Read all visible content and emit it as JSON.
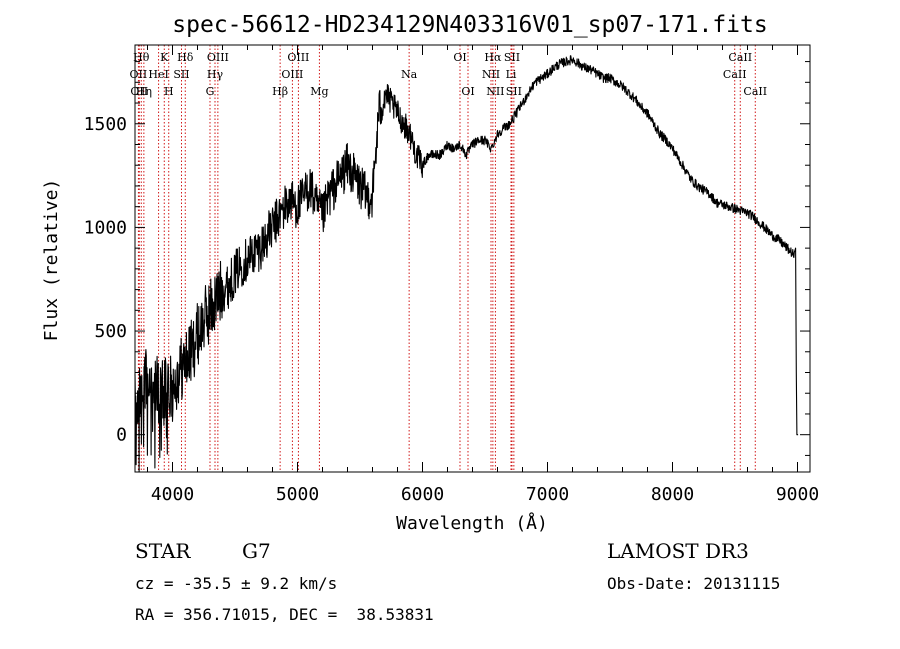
{
  "chart_data": {
    "type": "line",
    "title": "spec-56612-HD234129N403316V01_sp07-171.fits",
    "xlabel": "Wavelength (Å)",
    "ylabel": "Flux (relative)",
    "xlim": [
      3700,
      9100
    ],
    "ylim": [
      -180,
      1880
    ],
    "xticks": [
      4000,
      5000,
      6000,
      7000,
      8000,
      9000
    ],
    "yticks": [
      0,
      500,
      1000,
      1500
    ],
    "grid": false,
    "series": [
      {
        "name": "flux",
        "x": [
          3700,
          3750,
          3800,
          3850,
          3900,
          3950,
          4000,
          4050,
          4100,
          4150,
          4200,
          4250,
          4300,
          4350,
          4400,
          4450,
          4500,
          4550,
          4600,
          4650,
          4700,
          4750,
          4800,
          4850,
          4900,
          4950,
          5000,
          5050,
          5100,
          5150,
          5200,
          5250,
          5300,
          5350,
          5400,
          5450,
          5500,
          5550,
          5600,
          5650,
          5700,
          5750,
          5800,
          5850,
          5900,
          5950,
          6000,
          6050,
          6100,
          6150,
          6200,
          6250,
          6300,
          6350,
          6400,
          6450,
          6500,
          6550,
          6600,
          6650,
          6700,
          6750,
          6800,
          6850,
          6900,
          6950,
          7000,
          7050,
          7100,
          7150,
          7200,
          7250,
          7300,
          7350,
          7400,
          7450,
          7500,
          7550,
          7600,
          7650,
          7700,
          7750,
          7800,
          7850,
          7900,
          7950,
          8000,
          8050,
          8100,
          8150,
          8200,
          8250,
          8300,
          8350,
          8400,
          8450,
          8500,
          8550,
          8600,
          8650,
          8700,
          8750,
          8800,
          8850,
          8900,
          8950,
          8980,
          9000
        ],
        "y": [
          150,
          200,
          300,
          250,
          200,
          250,
          220,
          300,
          350,
          400,
          480,
          550,
          600,
          650,
          700,
          720,
          780,
          820,
          850,
          880,
          900,
          950,
          1000,
          1050,
          1100,
          1130,
          1100,
          1150,
          1200,
          1100,
          1050,
          1150,
          1200,
          1250,
          1300,
          1250,
          1200,
          1150,
          1150,
          1550,
          1650,
          1600,
          1550,
          1500,
          1450,
          1350,
          1300,
          1350,
          1350,
          1350,
          1400,
          1380,
          1400,
          1350,
          1400,
          1420,
          1420,
          1380,
          1450,
          1480,
          1500,
          1550,
          1600,
          1650,
          1700,
          1720,
          1740,
          1770,
          1790,
          1800,
          1810,
          1790,
          1770,
          1760,
          1740,
          1720,
          1720,
          1700,
          1680,
          1650,
          1620,
          1580,
          1550,
          1500,
          1450,
          1420,
          1380,
          1330,
          1280,
          1230,
          1200,
          1180,
          1160,
          1120,
          1110,
          1100,
          1090,
          1080,
          1070,
          1050,
          1020,
          990,
          960,
          940,
          910,
          880,
          860,
          0
        ]
      }
    ],
    "lines": [
      {
        "wl": 3727,
        "label": "OII",
        "row": 2
      },
      {
        "wl": 3734,
        "label": "OII",
        "row": 3
      },
      {
        "wl": 3750,
        "label": "Hθ",
        "row": 1
      },
      {
        "wl": 3771,
        "label": "Hη",
        "row": 3
      },
      {
        "wl": 3889,
        "label": "HeI",
        "row": 2
      },
      {
        "wl": 3934,
        "label": "K",
        "row": 1
      },
      {
        "wl": 3970,
        "label": "H",
        "row": 3
      },
      {
        "wl": 4072,
        "label": "SII",
        "row": 2
      },
      {
        "wl": 4102,
        "label": "Hδ",
        "row": 1
      },
      {
        "wl": 4300,
        "label": "G",
        "row": 3
      },
      {
        "wl": 4340,
        "label": "Hγ",
        "row": 2
      },
      {
        "wl": 4363,
        "label": "OIII",
        "row": 1
      },
      {
        "wl": 4861,
        "label": "Hβ",
        "row": 3
      },
      {
        "wl": 4959,
        "label": "OIII",
        "row": 2
      },
      {
        "wl": 5007,
        "label": "OIII",
        "row": 1
      },
      {
        "wl": 5175,
        "label": "Mg",
        "row": 3
      },
      {
        "wl": 5893,
        "label": "Na",
        "row": 2
      },
      {
        "wl": 6300,
        "label": "OI",
        "row": 1
      },
      {
        "wl": 6364,
        "label": "OI",
        "row": 3
      },
      {
        "wl": 6548,
        "label": "NII",
        "row": 2
      },
      {
        "wl": 6563,
        "label": "Hα",
        "row": 1
      },
      {
        "wl": 6583,
        "label": "NII",
        "row": 3
      },
      {
        "wl": 6708,
        "label": "Li",
        "row": 2
      },
      {
        "wl": 6716,
        "label": "SII",
        "row": 1
      },
      {
        "wl": 6731,
        "label": "SII",
        "row": 3
      },
      {
        "wl": 8498,
        "label": "CaII",
        "row": 2
      },
      {
        "wl": 8542,
        "label": "CaII",
        "row": 1
      },
      {
        "wl": 8662,
        "label": "CaII",
        "row": 3
      }
    ]
  },
  "info": {
    "class": "STAR",
    "subclass": "G7",
    "survey": "LAMOST DR3",
    "cz": "cz = -35.5 ± 9.2 km/s",
    "obsdate": "Obs-Date: 20131115",
    "radec": "RA = 356.71015, DEC =  38.53831"
  },
  "colors": {
    "line_marker": "#cc0000",
    "axis": "#000000",
    "spectrum": "#000000"
  }
}
